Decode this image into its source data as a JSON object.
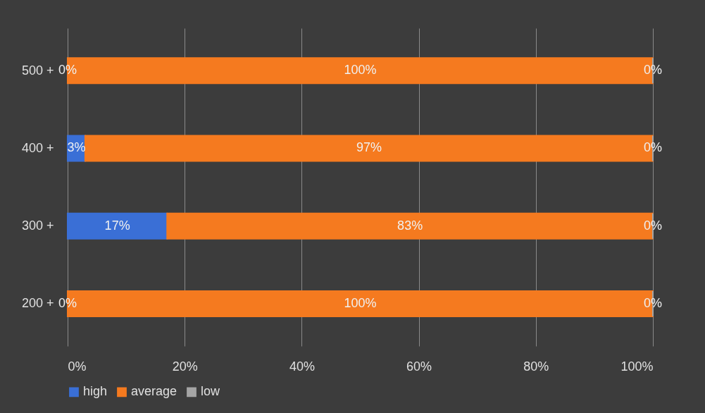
{
  "chart_data": {
    "type": "bar",
    "orientation": "horizontal",
    "stacked": true,
    "categories": [
      "500 +",
      "400 +",
      "300 +",
      "200 +"
    ],
    "series": [
      {
        "name": "high",
        "color": "#3a6fd6",
        "values": [
          0,
          3,
          17,
          0
        ],
        "value_labels": [
          "0%",
          "3%",
          "17%",
          "0%"
        ]
      },
      {
        "name": "average",
        "color": "#f57a1f",
        "values": [
          100,
          97,
          83,
          100
        ],
        "value_labels": [
          "100%",
          "97%",
          "83%",
          "100%"
        ]
      },
      {
        "name": "low",
        "color": "#a5a5a5",
        "values": [
          0,
          0,
          0,
          0
        ],
        "value_labels": [
          "0%",
          "0%",
          "0%",
          "0%"
        ]
      }
    ],
    "xlim": [
      0,
      100
    ],
    "xticks": [
      {
        "value": 0,
        "label": "0%"
      },
      {
        "value": 20,
        "label": "20%"
      },
      {
        "value": 40,
        "label": "40%"
      },
      {
        "value": 60,
        "label": "60%"
      },
      {
        "value": 80,
        "label": "80%"
      },
      {
        "value": 100,
        "label": "100%"
      }
    ],
    "grid": "x",
    "legend": "bottom"
  }
}
